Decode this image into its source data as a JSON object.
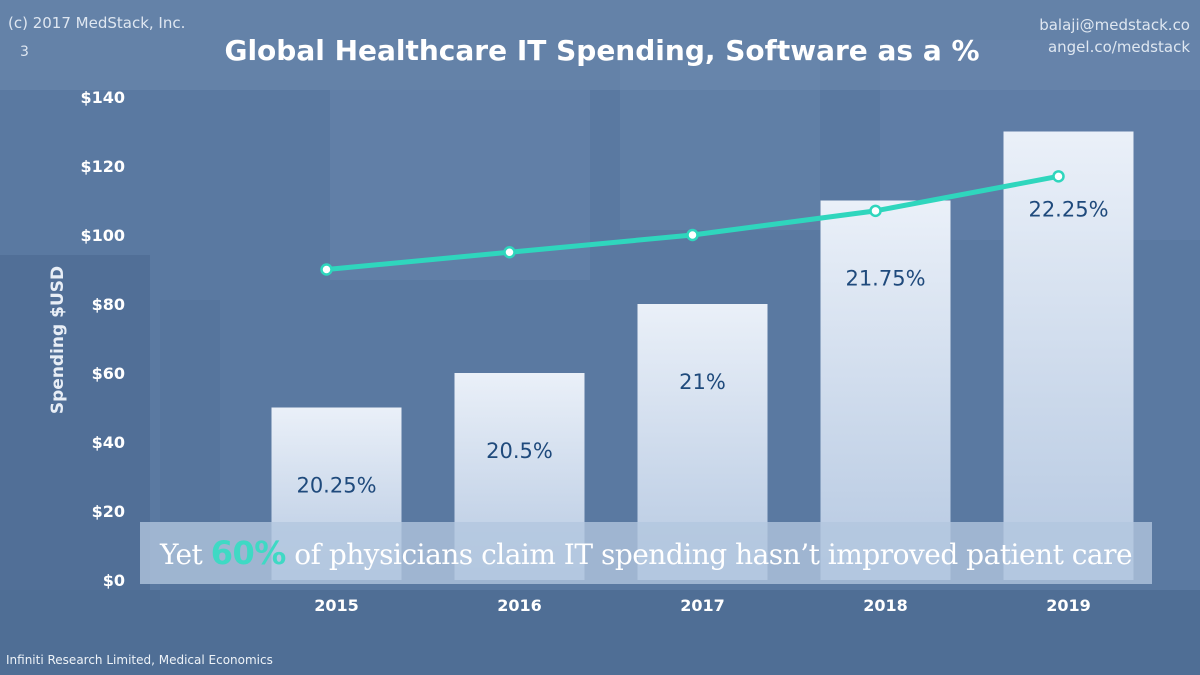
{
  "header": {
    "copyright": "(c) 2017 MedStack, Inc.",
    "slide_number": "3",
    "email": "balaji@medstack.co",
    "link": "angel.co/medstack"
  },
  "callout": {
    "prefix": "Yet",
    "highlight": "60%",
    "suffix": "of physicians claim IT spending hasn’t improved patient care"
  },
  "footer": {
    "source": "Infiniti Research Limited, Medical Economics"
  },
  "colors": {
    "bar_fill_top": "#f5f9ff",
    "bar_fill_bottom": "#bccee6",
    "line": "#2fd6bd",
    "bar_label": "#1f4a7c",
    "highlight": "#3fd9c4"
  },
  "chart_data": {
    "type": "bar",
    "title": "Global Healthcare IT Spending, Software as a %",
    "xlabel": "",
    "ylabel": "Spending $USD",
    "categories": [
      "2015",
      "2016",
      "2017",
      "2018",
      "2019"
    ],
    "ylim": [
      0,
      140
    ],
    "yticks": [
      0,
      20,
      40,
      60,
      80,
      100,
      120,
      140
    ],
    "ytick_labels": [
      "$0",
      "$20",
      "$40",
      "$60",
      "$80",
      "$100",
      "$120",
      "$140"
    ],
    "grid": false,
    "series": [
      {
        "type": "bar",
        "values": [
          50,
          60,
          80,
          110,
          130
        ],
        "labels": [
          "20.25%",
          "20.5%",
          "21%",
          "21.75%",
          "22.25%"
        ]
      },
      {
        "type": "line",
        "values": [
          90,
          95,
          100,
          107,
          117
        ]
      }
    ]
  }
}
